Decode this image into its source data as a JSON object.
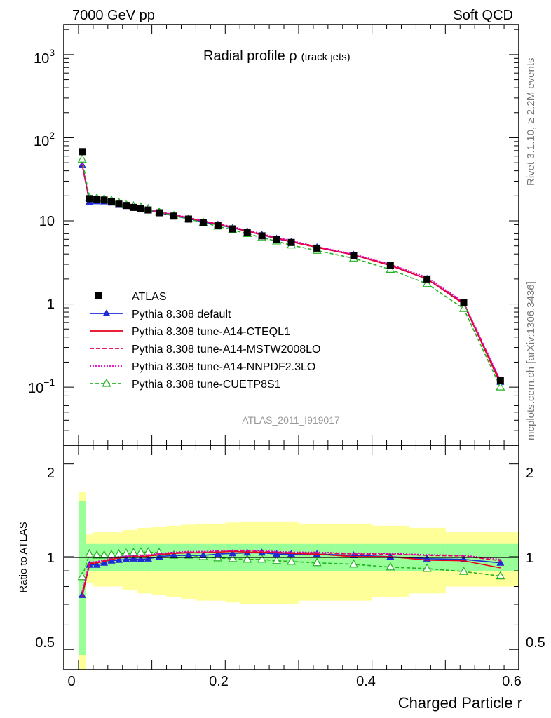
{
  "header": {
    "left": "7000 GeV pp",
    "right": "Soft QCD"
  },
  "side_labels": {
    "rivet": "Rivet 3.1.10, ≥ 2.2M events",
    "mcplots": "mcplots.cern.ch [arXiv:1306.3436]"
  },
  "chart_data": {
    "type": "line",
    "title": "Radial profile ρ",
    "title_suffix": "(track jets)",
    "analysis_tag": "ATLAS_2011_I919017",
    "xlabel": "Charged Particle r",
    "ylabel_ratio": "Ratio to ATLAS",
    "xlim": [
      -0.02,
      0.6
    ],
    "main_ylim": [
      0.02,
      2300
    ],
    "main_yscale": "log",
    "ratio_ylim": [
      0.43,
      2.3
    ],
    "ratio_yscale": "log",
    "x_ticks": [
      "0",
      "0.2",
      "0.4",
      "0.6"
    ],
    "x_tick_values": [
      0,
      0.2,
      0.4,
      0.6
    ],
    "main_y_ticks": [
      "10",
      "1"
    ],
    "main_y_ticks_pow": [
      {
        "base": "10",
        "exp": "3"
      },
      {
        "base": "10",
        "exp": "2"
      },
      {
        "base": "10",
        "exp": "−1"
      }
    ],
    "ratio_y_ticks": [
      "2",
      "1",
      "0.5"
    ],
    "ratio_y_tick_values": [
      2,
      1,
      0.5
    ],
    "x": [
      0.005,
      0.015,
      0.025,
      0.035,
      0.045,
      0.055,
      0.065,
      0.075,
      0.085,
      0.095,
      0.11,
      0.13,
      0.15,
      0.17,
      0.19,
      0.21,
      0.23,
      0.25,
      0.27,
      0.29,
      0.325,
      0.375,
      0.425,
      0.475,
      0.525,
      0.575
    ],
    "ratio_band_edges": [
      0,
      0.01,
      0.02,
      0.03,
      0.04,
      0.05,
      0.06,
      0.07,
      0.08,
      0.09,
      0.1,
      0.12,
      0.14,
      0.16,
      0.18,
      0.2,
      0.22,
      0.24,
      0.26,
      0.28,
      0.3,
      0.35,
      0.4,
      0.45,
      0.5,
      0.55,
      0.6
    ],
    "ratio_band_inner_halfwidth": [
      0.52,
      0.1,
      0.1,
      0.1,
      0.1,
      0.1,
      0.1,
      0.1,
      0.1,
      0.1,
      0.1,
      0.1,
      0.1,
      0.1,
      0.1,
      0.1,
      0.1,
      0.1,
      0.1,
      0.1,
      0.1,
      0.1,
      0.1,
      0.1,
      0.1,
      0.1
    ],
    "ratio_band_outer_halfwidth": [
      0.62,
      0.18,
      0.2,
      0.2,
      0.2,
      0.2,
      0.22,
      0.22,
      0.24,
      0.24,
      0.25,
      0.26,
      0.27,
      0.28,
      0.28,
      0.29,
      0.3,
      0.3,
      0.3,
      0.3,
      0.28,
      0.28,
      0.26,
      0.24,
      0.2,
      0.2
    ],
    "series": [
      {
        "name": "ATLAS",
        "style": "data",
        "color": "#000000",
        "marker": "square",
        "values": [
          68,
          18.5,
          18.2,
          17.8,
          17.0,
          16.2,
          15.3,
          14.5,
          14.0,
          13.5,
          12.5,
          11.4,
          10.5,
          9.6,
          8.8,
          8.0,
          7.3,
          6.6,
          6.0,
          5.5,
          4.7,
          3.8,
          2.9,
          2.0,
          1.03,
          0.12
        ]
      },
      {
        "name": "Pythia 8.308 default",
        "color": "#1f2bd4",
        "dash": "",
        "marker": "triangle",
        "values": [
          47,
          16.9,
          17.1,
          17.0,
          16.5,
          15.8,
          15.0,
          14.3,
          13.7,
          13.3,
          12.5,
          11.5,
          10.6,
          9.7,
          9.0,
          8.2,
          7.5,
          6.8,
          6.1,
          5.6,
          4.8,
          3.9,
          2.9,
          2.0,
          1.01,
          0.115
        ],
        "ratio": [
          0.75,
          0.94,
          0.94,
          0.955,
          0.97,
          0.975,
          0.98,
          0.985,
          0.98,
          0.985,
          1.0,
          1.01,
          1.01,
          1.01,
          1.02,
          1.025,
          1.03,
          1.03,
          1.02,
          1.02,
          1.02,
          1.01,
          1.0,
          0.985,
          0.98,
          0.955
        ]
      },
      {
        "name": "Pythia 8.308 tune-A14-CTEQL1",
        "color": "#e8001c",
        "dash": "",
        "marker": "none",
        "values": [
          47,
          17.3,
          17.5,
          17.2,
          16.7,
          16.0,
          15.2,
          14.6,
          14.0,
          13.5,
          12.7,
          11.7,
          10.8,
          9.9,
          9.1,
          8.3,
          7.5,
          6.8,
          6.2,
          5.6,
          4.8,
          3.9,
          2.9,
          2.0,
          1.0,
          0.11
        ],
        "ratio": [
          0.74,
          0.95,
          0.955,
          0.965,
          0.98,
          0.99,
          0.995,
          1.0,
          1.0,
          1.005,
          1.015,
          1.025,
          1.03,
          1.03,
          1.035,
          1.04,
          1.035,
          1.035,
          1.03,
          1.025,
          1.02,
          1.0,
          1.0,
          0.975,
          0.97,
          0.92
        ]
      },
      {
        "name": "Pythia 8.308 tune-A14-MSTW2008LO",
        "color": "#e8005a",
        "dash": "6,3",
        "marker": "none",
        "values": [
          48,
          17.4,
          17.6,
          17.3,
          16.8,
          16.1,
          15.3,
          14.7,
          14.1,
          13.6,
          12.8,
          11.8,
          10.9,
          9.9,
          9.2,
          8.4,
          7.6,
          6.9,
          6.2,
          5.7,
          4.9,
          3.9,
          3.0,
          2.0,
          1.04,
          0.118
        ],
        "ratio": [
          0.76,
          0.955,
          0.96,
          0.97,
          0.985,
          0.995,
          1.0,
          1.005,
          1.005,
          1.01,
          1.02,
          1.03,
          1.035,
          1.035,
          1.04,
          1.045,
          1.045,
          1.04,
          1.035,
          1.03,
          1.03,
          1.02,
          1.02,
          1.01,
          1.005,
          0.97
        ]
      },
      {
        "name": "Pythia 8.308 tune-A14-NNPDF2.3LO",
        "color": "#e000c0",
        "dash": "2,2",
        "marker": "none",
        "values": [
          49,
          17.5,
          17.7,
          17.4,
          16.9,
          16.2,
          15.4,
          14.8,
          14.2,
          13.7,
          12.9,
          11.9,
          11.0,
          10.0,
          9.3,
          8.5,
          7.7,
          7.0,
          6.3,
          5.8,
          4.9,
          4.0,
          3.0,
          2.1,
          1.05,
          0.12
        ],
        "ratio": [
          0.77,
          0.96,
          0.965,
          0.975,
          0.99,
          1.0,
          1.005,
          1.01,
          1.01,
          1.015,
          1.025,
          1.035,
          1.04,
          1.04,
          1.045,
          1.05,
          1.05,
          1.045,
          1.04,
          1.035,
          1.035,
          1.025,
          1.025,
          1.015,
          1.01,
          0.98
        ]
      },
      {
        "name": "Pythia 8.308 tune-CUETP8S1",
        "color": "#22b222",
        "dash": "5,3",
        "marker": "triangle-open",
        "values": [
          55,
          19.0,
          18.7,
          18.3,
          17.6,
          16.6,
          15.7,
          15.0,
          14.5,
          13.9,
          12.7,
          11.5,
          10.5,
          9.5,
          8.6,
          7.8,
          7.0,
          6.3,
          5.7,
          5.1,
          4.4,
          3.55,
          2.6,
          1.75,
          0.88,
          0.1
        ],
        "ratio": [
          0.86,
          1.02,
          1.01,
          1.01,
          1.015,
          1.02,
          1.025,
          1.03,
          1.035,
          1.035,
          1.03,
          1.01,
          1.01,
          1.0,
          0.99,
          0.985,
          0.98,
          0.98,
          0.97,
          0.965,
          0.955,
          0.945,
          0.925,
          0.915,
          0.895,
          0.865
        ]
      }
    ]
  }
}
